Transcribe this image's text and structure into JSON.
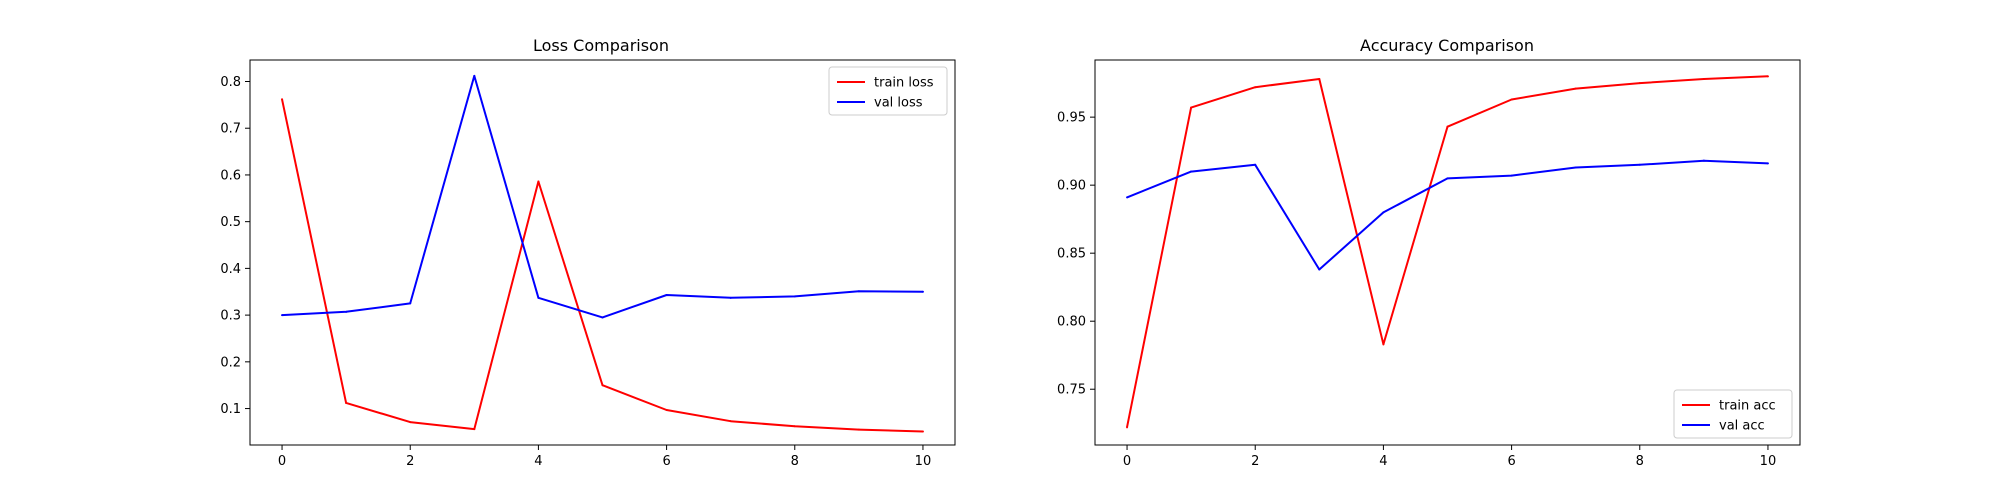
{
  "chart_data": [
    {
      "type": "line",
      "title": "Loss Comparison",
      "xlabel": "",
      "ylabel": "",
      "xlim": [
        -0.5,
        10.5
      ],
      "ylim": [
        0.022,
        0.846
      ],
      "xticks": [
        0,
        2,
        4,
        6,
        8,
        10
      ],
      "yticks": [
        0.1,
        0.2,
        0.3,
        0.4,
        0.5,
        0.6,
        0.7,
        0.8
      ],
      "grid": false,
      "legend_position": "upper right",
      "x": [
        0,
        1,
        2,
        3,
        4,
        5,
        6,
        7,
        8,
        9,
        10
      ],
      "series": [
        {
          "name": "train loss",
          "color": "#ff0000",
          "values": [
            0.762,
            0.112,
            0.071,
            0.056,
            0.586,
            0.15,
            0.097,
            0.073,
            0.062,
            0.055,
            0.051
          ]
        },
        {
          "name": "val loss",
          "color": "#0000ff",
          "values": [
            0.3,
            0.307,
            0.325,
            0.812,
            0.337,
            0.295,
            0.343,
            0.337,
            0.34,
            0.351,
            0.35
          ]
        }
      ]
    },
    {
      "type": "line",
      "title": "Accuracy Comparison",
      "xlabel": "",
      "ylabel": "",
      "xlim": [
        -0.5,
        10.5
      ],
      "ylim": [
        0.709,
        0.992
      ],
      "xticks": [
        0,
        2,
        4,
        6,
        8,
        10
      ],
      "yticks": [
        0.75,
        0.8,
        0.85,
        0.9,
        0.95
      ],
      "ytick_labels": [
        "0.75",
        "0.80",
        "0.85",
        "0.90",
        "0.95"
      ],
      "grid": false,
      "legend_position": "lower right",
      "x": [
        0,
        1,
        2,
        3,
        4,
        5,
        6,
        7,
        8,
        9,
        10
      ],
      "series": [
        {
          "name": "train acc",
          "color": "#ff0000",
          "values": [
            0.722,
            0.957,
            0.972,
            0.978,
            0.783,
            0.943,
            0.963,
            0.971,
            0.975,
            0.978,
            0.98
          ]
        },
        {
          "name": "val acc",
          "color": "#0000ff",
          "values": [
            0.891,
            0.91,
            0.915,
            0.838,
            0.88,
            0.905,
            0.907,
            0.913,
            0.915,
            0.918,
            0.916
          ]
        }
      ]
    }
  ]
}
